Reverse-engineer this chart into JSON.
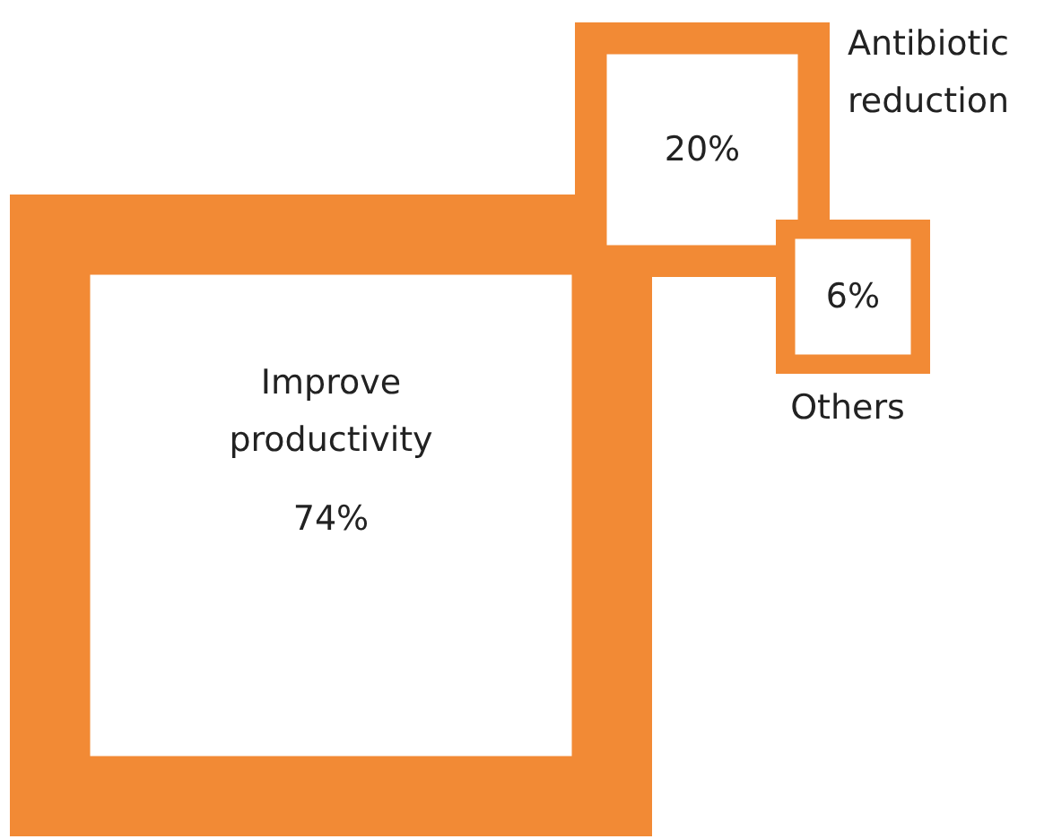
{
  "chart_data": {
    "type": "other",
    "categories": [
      "Improve productivity",
      "Antibiotic reduction",
      "Others"
    ],
    "values": [
      74,
      20,
      6
    ],
    "value_labels": [
      "74%",
      "20%",
      "6%"
    ],
    "colors": [
      "#f28a35",
      "#f28a35",
      "#f28a35"
    ]
  }
}
